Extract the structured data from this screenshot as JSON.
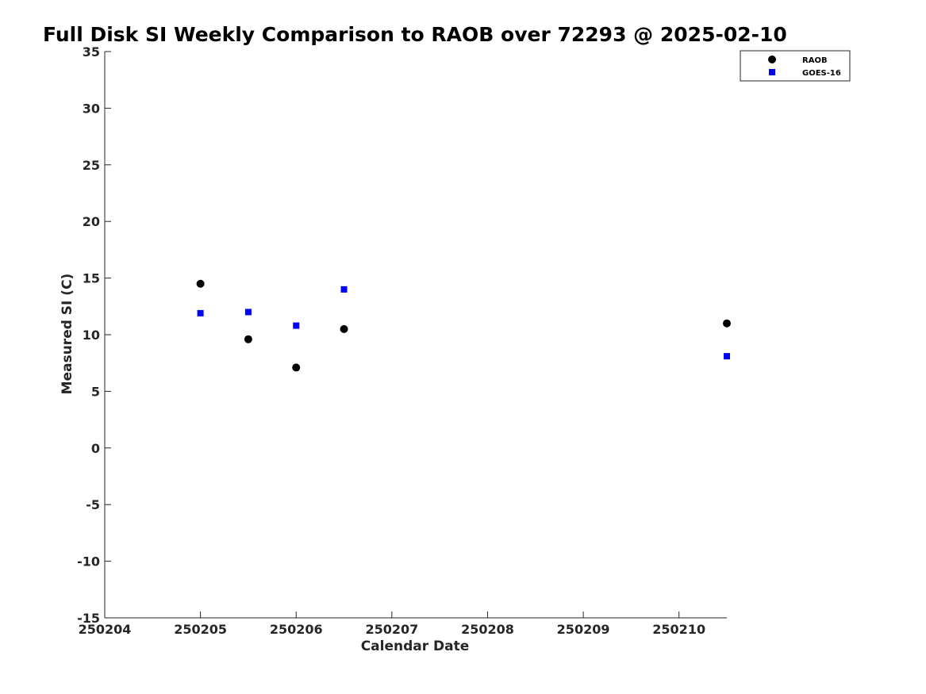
{
  "chart_data": {
    "type": "scatter",
    "title": "Full Disk SI Weekly Comparison to RAOB over 72293 @ 2025-02-10",
    "xlabel": "Calendar Date",
    "ylabel": "Measured SI (C)",
    "xlim": [
      250204,
      250210.5
    ],
    "ylim": [
      -15,
      35
    ],
    "xticks": [
      250204,
      250205,
      250206,
      250207,
      250208,
      250209,
      250210
    ],
    "xtick_labels": [
      "250204",
      "250205",
      "250206",
      "250207",
      "250208",
      "250209",
      "250210"
    ],
    "yticks": [
      -15,
      -10,
      -5,
      0,
      5,
      10,
      15,
      20,
      25,
      30,
      35
    ],
    "ytick_labels": [
      "-15",
      "-10",
      "-5",
      "0",
      "5",
      "10",
      "15",
      "20",
      "25",
      "30",
      "35"
    ],
    "grid": false,
    "legend_position": "top-right",
    "series": [
      {
        "name": "RAOB",
        "marker": "circle",
        "color": "#000000",
        "x": [
          250205,
          250205.5,
          250206,
          250206.5,
          250210.5
        ],
        "y": [
          14.5,
          9.6,
          7.1,
          10.5,
          11.0
        ]
      },
      {
        "name": "GOES-16",
        "marker": "square",
        "color": "#0000ff",
        "x": [
          250205,
          250205.5,
          250206,
          250206.5,
          250210.5
        ],
        "y": [
          11.9,
          12.0,
          10.8,
          14.0,
          8.1
        ]
      }
    ]
  }
}
